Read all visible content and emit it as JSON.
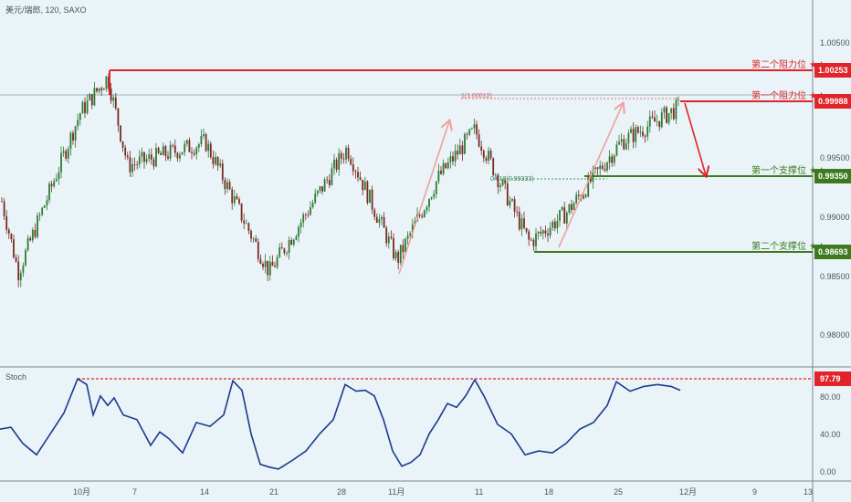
{
  "header": {
    "symbol": "美元/瑞郎, 120, SAXO"
  },
  "colors": {
    "background": "#e9f3f8",
    "resistance": "#e0242a",
    "support": "#3d7a1e",
    "bull_candle": "#2f7a32",
    "bear_candle": "#7a2a22",
    "stoch": "#1c3a8c",
    "arrow_pink": "#f0a0a0",
    "arrow_red": "#e0242a",
    "axis_text": "#4a5560"
  },
  "levels": {
    "r2": {
      "label": "第二个阻力位 ★★",
      "value": "1.00253"
    },
    "r1": {
      "label": "第一个阻力位 ★★",
      "value": "0.99988"
    },
    "s1": {
      "label": "第一个支撑位 ★★",
      "value": "0.99350"
    },
    "s2": {
      "label": "第二个支撑位 ★★",
      "value": "0.98693"
    }
  },
  "fib_labels": {
    "upper": "1(1.00012)",
    "lower": "0.618(0.99333)"
  },
  "stoch": {
    "label": "Stoch",
    "level_value": "97.79",
    "ticks": [
      "80.00",
      "40.00",
      "0.00"
    ]
  },
  "chart_data": {
    "type": "candlestick",
    "title": "美元/瑞郎, 120, SAXO",
    "y_ticks": [
      "1.00500",
      "0.99500",
      "0.99000",
      "0.98500",
      "0.98000"
    ],
    "ylim": [
      0.9775,
      1.0085
    ],
    "x_ticks": [
      "10月",
      "7",
      "14",
      "21",
      "28",
      "11月",
      "11",
      "18",
      "25",
      "12月",
      "9",
      "13"
    ],
    "price_path": [
      {
        "x": "start",
        "y": 0.9915
      },
      {
        "x": "early Oct",
        "y": 0.9855
      },
      {
        "x": "Oct 1",
        "y": 0.999
      },
      {
        "x": "Oct 3",
        "y": 1.002
      },
      {
        "x": "Oct 7",
        "y": 0.9945
      },
      {
        "x": "Oct 14",
        "y": 0.9965
      },
      {
        "x": "Oct 21",
        "y": 0.9855
      },
      {
        "x": "Oct 28",
        "y": 0.996
      },
      {
        "x": "Nov 1",
        "y": 0.9865
      },
      {
        "x": "Nov 5",
        "y": 0.9935
      },
      {
        "x": "Nov 11",
        "y": 0.9975
      },
      {
        "x": "Nov 15",
        "y": 0.988
      },
      {
        "x": "Nov 20",
        "y": 0.9905
      },
      {
        "x": "Nov 25",
        "y": 0.9965
      },
      {
        "x": "Nov 29",
        "y": 0.9995
      }
    ],
    "stoch_ylim": [
      0,
      100
    ],
    "stoch_ticks": [
      0,
      40,
      80
    ],
    "stoch_level": 97.79,
    "grid": false,
    "legend": "none"
  }
}
